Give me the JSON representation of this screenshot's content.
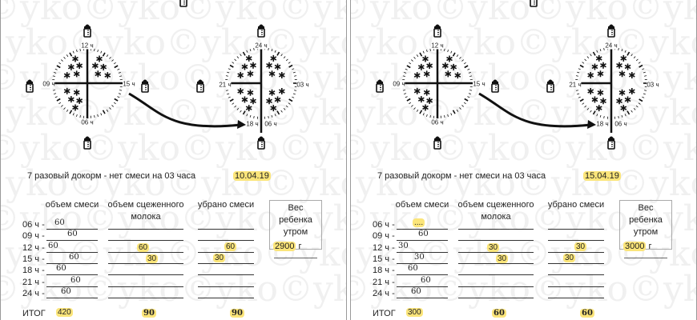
{
  "watermark": "©yko©yko©yko©yko©yko",
  "panels": [
    {
      "clock1": {
        "top": "12 ч",
        "bottom": "06 ч",
        "left": "09 ч",
        "right": "15 ч"
      },
      "clock2": {
        "top": "24 ч",
        "left": "21 ч",
        "right": "03 ч",
        "bottom_left": "18 ч",
        "bottom_right": "06 ч"
      },
      "title": "7 разовый докорм - нет смеси на 03 часа",
      "date": "10.04.19",
      "headers": [
        "объем смеси",
        "объем сцеженного молока",
        "убрано смеси"
      ],
      "weight_label": "Вес ребенка утром",
      "weight_value": "2900",
      "weight_unit": "г",
      "rows": [
        {
          "label": "06 ч -",
          "formula": "60",
          "milk": "",
          "removed": ""
        },
        {
          "label": "09 ч -",
          "formula": "60",
          "milk": "",
          "removed": ""
        },
        {
          "label": "12 ч -",
          "formula": "60",
          "milk": "60",
          "removed": "60"
        },
        {
          "label": "15 ч -",
          "formula": "60",
          "milk": "30",
          "removed": "30"
        },
        {
          "label": "18 ч -",
          "formula": "60",
          "milk": "",
          "removed": ""
        },
        {
          "label": "21 ч -",
          "formula": "60",
          "milk": "",
          "removed": ""
        },
        {
          "label": "24 ч -",
          "formula": "60",
          "milk": "",
          "removed": ""
        }
      ],
      "total_label": "ИТОГ",
      "totals": [
        "420",
        "90",
        "90"
      ]
    },
    {
      "clock1": {
        "top": "12 ч",
        "bottom": "06 ч",
        "left": "09 ч",
        "right": "15 ч"
      },
      "clock2": {
        "top": "24 ч",
        "left": "21 ч",
        "right": "03 ч",
        "bottom_left": "18 ч",
        "bottom_right": "06 ч"
      },
      "title": "7 разовый докорм - нет смеси на 03 часа",
      "date": "15.04.19",
      "headers": [
        "объем смеси",
        "объем сцеженного молока",
        "убрано смеси"
      ],
      "weight_label": "Вес ребенка утром",
      "weight_value": "3000",
      "weight_unit": "г",
      "rows": [
        {
          "label": "06 ч -",
          "formula": "....",
          "milk": "",
          "removed": ""
        },
        {
          "label": "09 ч -",
          "formula": "60",
          "milk": "",
          "removed": ""
        },
        {
          "label": "12 ч -",
          "formula": "30",
          "milk": "30",
          "removed": "30"
        },
        {
          "label": "15 ч -",
          "formula": "30",
          "milk": "30",
          "removed": "30"
        },
        {
          "label": "18 ч -",
          "formula": "60",
          "milk": "",
          "removed": ""
        },
        {
          "label": "21 ч -",
          "formula": "60",
          "milk": "",
          "removed": ""
        },
        {
          "label": "24 ч -",
          "formula": "60",
          "milk": "",
          "removed": ""
        }
      ],
      "total_label": "ИТОГ",
      "totals": [
        "300",
        "60",
        "60"
      ]
    }
  ]
}
